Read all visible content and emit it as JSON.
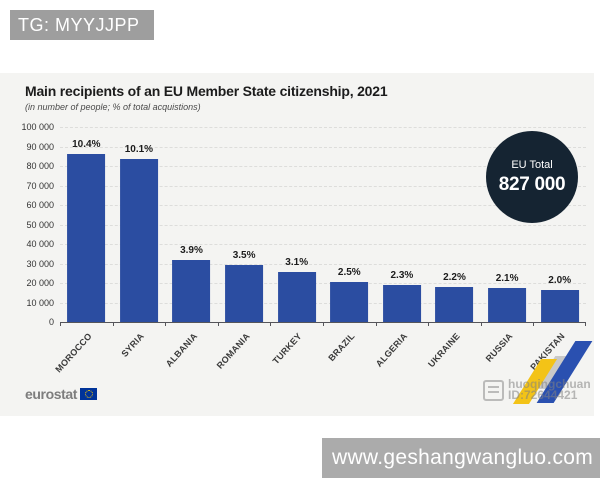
{
  "tg_badge": {
    "label": "TG: MYYJJPP"
  },
  "bottom_bar": {
    "url": "www.geshangwangluo.com"
  },
  "watermark": {
    "line1": "huoqingchuan",
    "line2": "ID:72644421"
  },
  "eurostat": {
    "label": "eurostat"
  },
  "chart_data": {
    "type": "bar",
    "title": "Main recipients of an EU Member State citizenship, 2021",
    "subtitle": "(in number of people; % of total acquistions)",
    "categories": [
      "MOROCCO",
      "SYRIA",
      "ALBANIA",
      "ROMANIA",
      "TURKEY",
      "BRAZIL",
      "ALGERIA",
      "UKRAINE",
      "RUSSIA",
      "PAKISTAN"
    ],
    "values": [
      86000,
      83500,
      32000,
      29000,
      25500,
      20500,
      19000,
      18000,
      17300,
      16500
    ],
    "bar_labels": [
      "10.4%",
      "10.1%",
      "3.9%",
      "3.5%",
      "3.1%",
      "2.5%",
      "2.3%",
      "2.2%",
      "2.1%",
      "2.0%"
    ],
    "ylim": [
      0,
      100000
    ],
    "yticks": [
      "100 000",
      "90 000",
      "80 000",
      "70 000",
      "60 000",
      "50 000",
      "40 000",
      "30 000",
      "20 000",
      "10 000",
      "0"
    ],
    "grid": "horizontal-dashed",
    "legend": "none",
    "annotation": {
      "label": "EU Total",
      "value": "827 000"
    },
    "xlabel": "",
    "ylabel": ""
  },
  "colors": {
    "bar": "#2b4da1",
    "annotation_bg": "#152432",
    "card_bg": "#f4f4f2",
    "badge_bg": "#9e9e9e",
    "bottom_bar_bg": "#ababab",
    "flag_blue": "#003399",
    "flag_stars": "#ffcc00",
    "wm_yellow": "#f3c317",
    "wm_blue": "#2a50b0",
    "wm_gray": "#c9c9c9"
  }
}
